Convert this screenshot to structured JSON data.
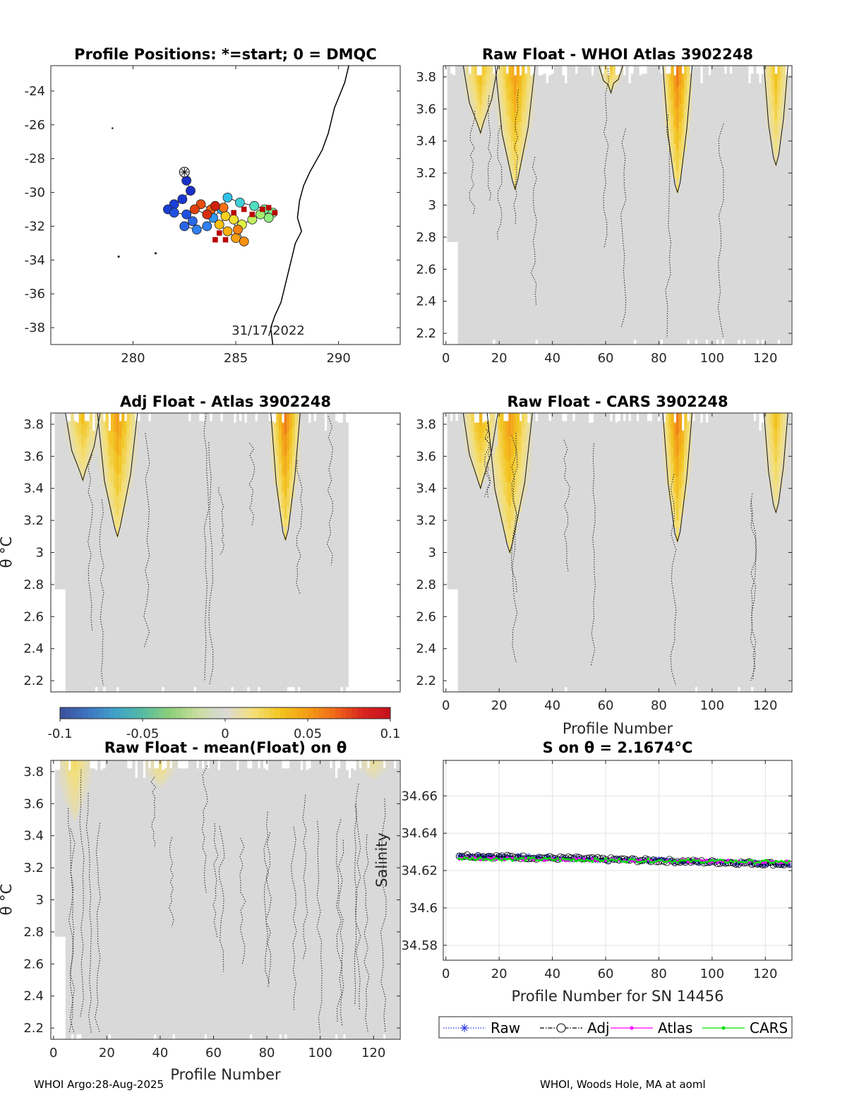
{
  "footer": {
    "left": "WHOI Argo:28-Aug-2025",
    "right": "WHOI, Woods Hole, MA at aoml"
  },
  "colors": {
    "background_field": "#d9d9d9",
    "raw": "#2030e0",
    "adj": "#000000",
    "atlas": "#ff00ff",
    "cars": "#00e000",
    "coast": "#000000"
  },
  "colorbar": {
    "tick_labels": [
      "-0.1",
      "-0.05",
      "0",
      "0.05",
      "0.1"
    ],
    "ticks": [
      -0.1,
      -0.05,
      0,
      0.05,
      0.1
    ],
    "range": [
      -0.1,
      0.1
    ],
    "colors": [
      "#3a4f9a",
      "#3f74c0",
      "#3fa1c9",
      "#55bba2",
      "#8fcf78",
      "#c9dd9f",
      "#d9d9d9",
      "#f4e07a",
      "#f3c51e",
      "#f49d16",
      "#ef6719",
      "#d7261f",
      "#c40f1f"
    ]
  },
  "chart_data": [
    {
      "id": "map",
      "type": "scatter",
      "title": "Profile Positions: *=start; 0 = DMQC",
      "xlabel": "",
      "ylabel": "",
      "xlim": [
        276,
        293
      ],
      "ylim": [
        -39,
        -22.5
      ],
      "xticks": [
        280,
        285,
        290
      ],
      "yticks": [
        -24,
        -26,
        -28,
        -30,
        -32,
        -34,
        -36,
        -38
      ],
      "annotation": "31/17/2022",
      "start": {
        "x": 282.5,
        "y": -28.8
      },
      "coast": [
        [
          290.5,
          -22.5
        ],
        [
          290.3,
          -23.5
        ],
        [
          289.8,
          -25
        ],
        [
          289.5,
          -26.5
        ],
        [
          289.2,
          -27.5
        ],
        [
          288.6,
          -28.8
        ],
        [
          288.3,
          -29.6
        ],
        [
          288.1,
          -30.5
        ],
        [
          288.0,
          -31.5
        ],
        [
          288.2,
          -32.3
        ],
        [
          287.9,
          -33
        ],
        [
          287.7,
          -34
        ],
        [
          287.5,
          -35
        ],
        [
          287.2,
          -36.5
        ],
        [
          286.9,
          -37.3
        ],
        [
          286.7,
          -38
        ],
        [
          286.8,
          -39
        ]
      ],
      "track": [
        {
          "x": 282.6,
          "y": -29.3,
          "c": "#1a30c8"
        },
        {
          "x": 282.8,
          "y": -29.9,
          "c": "#1a30c8"
        },
        {
          "x": 282.4,
          "y": -30.4,
          "c": "#1a36d0"
        },
        {
          "x": 282.0,
          "y": -30.7,
          "c": "#1a3ed8"
        },
        {
          "x": 281.7,
          "y": -31.0,
          "c": "#1a3ed8"
        },
        {
          "x": 282.0,
          "y": -31.2,
          "c": "#2050e0"
        },
        {
          "x": 282.6,
          "y": -31.3,
          "c": "#2050e0"
        },
        {
          "x": 282.9,
          "y": -31.7,
          "c": "#2a66e8"
        },
        {
          "x": 282.5,
          "y": -32.0,
          "c": "#2a66e8"
        },
        {
          "x": 283.1,
          "y": -32.2,
          "c": "#3080f0"
        },
        {
          "x": 283.6,
          "y": -32.0,
          "c": "#3080f0"
        },
        {
          "x": 283.9,
          "y": -31.5,
          "c": "#3098f0"
        },
        {
          "x": 284.3,
          "y": -31.0,
          "c": "#30b0f0"
        },
        {
          "x": 284.6,
          "y": -30.3,
          "c": "#30c0e8"
        },
        {
          "x": 285.2,
          "y": -30.6,
          "c": "#40d0d8"
        },
        {
          "x": 285.9,
          "y": -30.8,
          "c": "#50e0c0"
        },
        {
          "x": 286.4,
          "y": -31.0,
          "c": "#70f0a0"
        },
        {
          "x": 286.8,
          "y": -31.2,
          "c": "#80f090"
        },
        {
          "x": 286.6,
          "y": -31.5,
          "c": "#90f080"
        },
        {
          "x": 286.2,
          "y": -31.3,
          "c": "#a0f070"
        },
        {
          "x": 285.8,
          "y": -31.6,
          "c": "#c0f060"
        },
        {
          "x": 285.3,
          "y": -31.9,
          "c": "#e0f040"
        },
        {
          "x": 284.9,
          "y": -31.6,
          "c": "#f0e030"
        },
        {
          "x": 284.5,
          "y": -31.4,
          "c": "#f8d020"
        },
        {
          "x": 284.2,
          "y": -31.9,
          "c": "#f8c010"
        },
        {
          "x": 284.6,
          "y": -32.3,
          "c": "#f8b010"
        },
        {
          "x": 285.0,
          "y": -32.7,
          "c": "#f8a010"
        },
        {
          "x": 285.4,
          "y": -32.9,
          "c": "#f89010"
        },
        {
          "x": 285.1,
          "y": -32.2,
          "c": "#f88010"
        },
        {
          "x": 284.4,
          "y": -30.9,
          "c": "#f87010"
        },
        {
          "x": 283.8,
          "y": -31.0,
          "c": "#f06010"
        },
        {
          "x": 283.3,
          "y": -30.7,
          "c": "#e85010"
        },
        {
          "x": 283.0,
          "y": -31.0,
          "c": "#e04010"
        },
        {
          "x": 283.6,
          "y": -31.3,
          "c": "#d83010"
        },
        {
          "x": 284.0,
          "y": -30.8,
          "c": "#d02010"
        }
      ],
      "dmqc": [
        {
          "x": 284.2,
          "y": -32.4
        },
        {
          "x": 284.0,
          "y": -32.8
        },
        {
          "x": 284.5,
          "y": -32.8
        },
        {
          "x": 284.9,
          "y": -31.2
        },
        {
          "x": 285.4,
          "y": -31.0
        },
        {
          "x": 285.8,
          "y": -31.3
        },
        {
          "x": 286.3,
          "y": -31.0
        },
        {
          "x": 286.6,
          "y": -30.9
        },
        {
          "x": 286.9,
          "y": -31.2
        }
      ]
    },
    {
      "id": "raw-atlas",
      "type": "heatmap",
      "title": "Raw Float - WHOI Atlas  3902248",
      "xlim": [
        -1,
        130
      ],
      "ylim": [
        2.13,
        3.87
      ],
      "xticks": [
        0,
        20,
        40,
        60,
        80,
        100,
        120
      ],
      "yticks": [
        3.8,
        3.6,
        3.4,
        3.2,
        3,
        2.8,
        2.6,
        2.4,
        2.2
      ],
      "ytick_labels": [
        "3.8",
        "3.6",
        "3.4",
        "3.2",
        "3",
        "2.8",
        "2.6",
        "2.4",
        "2.2"
      ],
      "xlabel": "",
      "ylabel": "",
      "profiles": [
        1,
        129
      ],
      "blobs": [
        {
          "x": 26,
          "top": 3.87,
          "bottom": 3.1,
          "w": 7,
          "value": 0.05
        },
        {
          "x": 13,
          "top": 3.87,
          "bottom": 3.45,
          "w": 6,
          "value": 0.035
        },
        {
          "x": 87,
          "top": 3.87,
          "bottom": 3.08,
          "w": 5,
          "value": 0.06
        },
        {
          "x": 62,
          "top": 3.87,
          "bottom": 3.7,
          "w": 4,
          "value": 0.03
        },
        {
          "x": 124,
          "top": 3.82,
          "bottom": 3.25,
          "w": 4,
          "value": 0.035
        }
      ]
    },
    {
      "id": "adj-atlas",
      "type": "heatmap",
      "title": "Adj Float - Atlas  3902248",
      "xlim": [
        -1,
        130
      ],
      "ylim": [
        2.13,
        3.87
      ],
      "xticks": [],
      "yticks": [
        3.8,
        3.6,
        3.4,
        3.2,
        3,
        2.8,
        2.6,
        2.4,
        2.2
      ],
      "ytick_labels": [
        "3.8",
        "3.6",
        "3.4",
        "3.2",
        "3",
        "2.8",
        "2.6",
        "2.4",
        "2.2"
      ],
      "xlabel": "",
      "ylabel": "θ °C",
      "profiles": [
        1,
        110
      ],
      "blobs": [
        {
          "x": 24,
          "top": 3.87,
          "bottom": 3.1,
          "w": 7,
          "value": 0.05
        },
        {
          "x": 11,
          "top": 3.87,
          "bottom": 3.45,
          "w": 6,
          "value": 0.035
        },
        {
          "x": 87,
          "top": 3.87,
          "bottom": 3.08,
          "w": 5,
          "value": 0.06
        }
      ]
    },
    {
      "id": "raw-cars",
      "type": "heatmap",
      "title": "Raw Float - CARS  3902248",
      "xlim": [
        -1,
        130
      ],
      "ylim": [
        2.13,
        3.87
      ],
      "xticks": [
        0,
        20,
        40,
        60,
        80,
        100,
        120
      ],
      "yticks": [
        3.8,
        3.6,
        3.4,
        3.2,
        3,
        2.8,
        2.6,
        2.4,
        2.2
      ],
      "ytick_labels": [
        "3.8",
        "3.6",
        "3.4",
        "3.2",
        "3",
        "2.8",
        "2.6",
        "2.4",
        "2.2"
      ],
      "xlabel": "Profile Number",
      "ylabel": "",
      "profiles": [
        1,
        129
      ],
      "blobs": [
        {
          "x": 24,
          "top": 3.87,
          "bottom": 3.0,
          "w": 8,
          "value": 0.05
        },
        {
          "x": 13,
          "top": 3.87,
          "bottom": 3.4,
          "w": 6,
          "value": 0.04
        },
        {
          "x": 87,
          "top": 3.87,
          "bottom": 3.07,
          "w": 5,
          "value": 0.06
        },
        {
          "x": 124,
          "top": 3.82,
          "bottom": 3.25,
          "w": 4,
          "value": 0.035
        }
      ]
    },
    {
      "id": "raw-mean",
      "type": "heatmap",
      "title": "Raw Float - mean(Float) on θ",
      "xlim": [
        -1,
        130
      ],
      "ylim": [
        2.13,
        3.87
      ],
      "xticks": [
        0,
        20,
        40,
        60,
        80,
        100,
        120
      ],
      "yticks": [
        3.8,
        3.6,
        3.4,
        3.2,
        3,
        2.8,
        2.6,
        2.4,
        2.2
      ],
      "ytick_labels": [
        "3.8",
        "3.6",
        "3.4",
        "3.2",
        "3",
        "2.8",
        "2.6",
        "2.4",
        "2.2"
      ],
      "xlabel": "Profile Number",
      "ylabel": "θ °C",
      "profiles": [
        1,
        129
      ],
      "blobs": [
        {
          "x": 8,
          "top": 3.87,
          "bottom": 3.5,
          "w": 6,
          "value": 0.02
        },
        {
          "x": 40,
          "top": 3.87,
          "bottom": 3.7,
          "w": 6,
          "value": 0.015
        },
        {
          "x": 120,
          "top": 3.87,
          "bottom": 3.75,
          "w": 6,
          "value": 0.012
        }
      ]
    },
    {
      "id": "salinity",
      "type": "line",
      "title": "S on θ = 2.1674°C",
      "xlabel": "Profile Number for SN 14456",
      "ylabel": "Salinity",
      "xlim": [
        -1,
        130
      ],
      "ylim": [
        34.572,
        34.679
      ],
      "xticks": [
        0,
        20,
        40,
        60,
        80,
        100,
        120
      ],
      "yticks": [
        34.66,
        34.64,
        34.62,
        34.6,
        34.58
      ],
      "ytick_labels": [
        "34.66",
        "34.64",
        "34.62",
        "34.6",
        "34.58"
      ],
      "x_start": 5,
      "series": [
        {
          "name": "Raw",
          "start": 34.628,
          "end": 34.6235,
          "color": "#2030e0"
        },
        {
          "name": "Adj",
          "start": 34.628,
          "end": 34.6235,
          "color": "#000000"
        },
        {
          "name": "Atlas",
          "start": 34.6265,
          "end": 34.6245,
          "color": "#ff00ff"
        },
        {
          "name": "CARS",
          "start": 34.6265,
          "end": 34.6245,
          "color": "#00e000"
        }
      ]
    }
  ]
}
